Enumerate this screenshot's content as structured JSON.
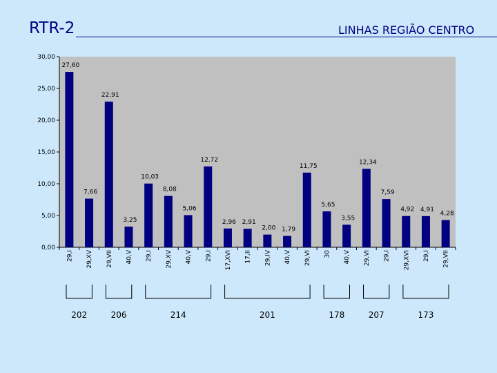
{
  "header": {
    "title": "RTR-2",
    "subtitle": "LINHAS REGIÃO CENTRO"
  },
  "chart_data": {
    "type": "bar",
    "categories": [
      "29,I",
      "29,XV",
      "29,VII",
      "40,V",
      "29,I",
      "29,XV",
      "40,V",
      "29,I",
      "17,XVI",
      "17,II",
      "29,IV",
      "40,V",
      "29,VI",
      "30",
      "40,V",
      "29,VI",
      "29,I",
      "29,XVI",
      "29,I",
      "29,VII"
    ],
    "values": [
      27.6,
      7.66,
      22.91,
      3.25,
      10.03,
      8.08,
      5.06,
      12.72,
      2.96,
      2.91,
      2.0,
      1.79,
      11.75,
      5.65,
      3.55,
      12.34,
      7.59,
      4.92,
      4.91,
      4.28
    ],
    "value_labels": [
      "27,60",
      "7,66",
      "22,91",
      "3,25",
      "10,03",
      "8,08",
      "5,06",
      "12,72",
      "2,96",
      "2,91",
      "2,00",
      "1,79",
      "11,75",
      "5,65",
      "3,55",
      "12,34",
      "7,59",
      "4,92",
      "4,91",
      "4,28"
    ],
    "ylim": [
      0,
      30
    ],
    "y_ticks": [
      "0,00",
      "5,00",
      "10,00",
      "15,00",
      "20,00",
      "25,00",
      "30,00"
    ],
    "groups": [
      {
        "label": "202",
        "from": 0,
        "to": 1
      },
      {
        "label": "206",
        "from": 2,
        "to": 3
      },
      {
        "label": "214",
        "from": 4,
        "to": 7
      },
      {
        "label": "201",
        "from": 8,
        "to": 12
      },
      {
        "label": "178",
        "from": 13,
        "to": 14
      },
      {
        "label": "207",
        "from": 15,
        "to": 16
      },
      {
        "label": "173",
        "from": 17,
        "to": 19
      }
    ],
    "grid": false,
    "legend": "none",
    "colors": {
      "bar": "#000080",
      "plot_bg": "#c0c0c0",
      "page_bg": "#cce8fa",
      "text": "#000080"
    }
  }
}
